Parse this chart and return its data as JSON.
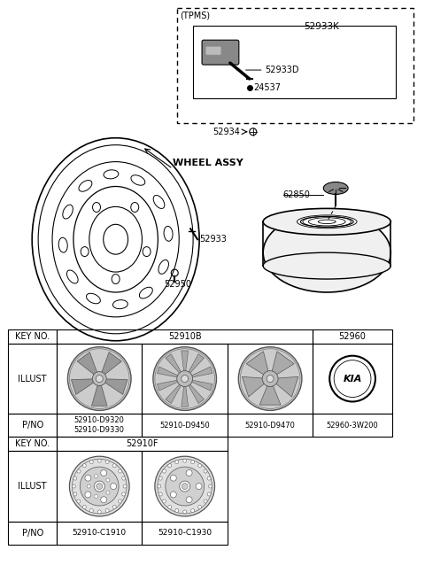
{
  "bg_color": "#ffffff",
  "fig_width": 4.8,
  "fig_height": 6.56,
  "dpi": 100,
  "tpms": {
    "label": "(TPMS)",
    "part_52933K": "52933K",
    "part_52933D": "52933D",
    "part_24537": "24537",
    "part_52934": "52934"
  },
  "wheel_assy": {
    "label": "WHEEL ASSY",
    "part_52933": "52933",
    "part_52950": "52950",
    "part_62850": "62850"
  },
  "table": {
    "key_no": "KEY NO.",
    "illust": "ILLUST",
    "pno": "P/NO",
    "key1_span": "52910B",
    "key1_last": "52960",
    "pno1": "52910-D9320\n52910-D9330",
    "pno2": "52910-D9450",
    "pno3": "52910-D9470",
    "pno4": "52960-3W200",
    "key2_span": "52910F",
    "pno5": "52910-C1910",
    "pno6": "52910-C1930"
  }
}
